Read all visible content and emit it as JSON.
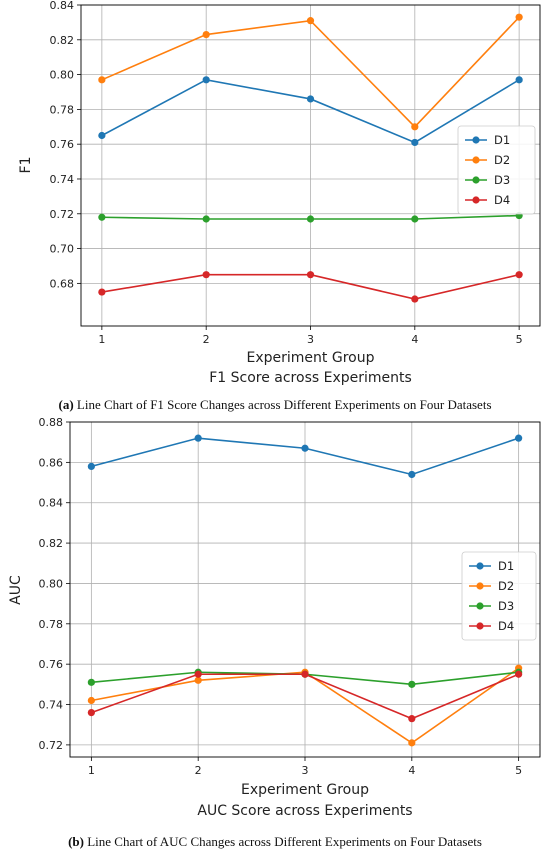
{
  "captions": [
    {
      "tag": "(a)",
      "text": " Line Chart of F1 Score Changes across Different Experiments on Four Datasets"
    },
    {
      "tag": "(b)",
      "text": " Line Chart of AUC Changes across Different Experiments on Four Datasets"
    }
  ],
  "chart_data": [
    {
      "type": "line",
      "xlabel": "Experiment Group",
      "subtitle": "F1 Score across Experiments",
      "ylabel": "F1",
      "x": [
        1,
        2,
        3,
        4,
        5
      ],
      "xlim": [
        0.8,
        5.2
      ],
      "ylim": [
        0.6555,
        0.84
      ],
      "yticks": [
        0.68,
        0.7,
        0.72,
        0.74,
        0.76,
        0.78,
        0.8,
        0.82,
        0.84
      ],
      "grid": true,
      "legend": "center-right",
      "series": [
        {
          "name": "D1",
          "color": "#1f77b4",
          "values": [
            0.765,
            0.797,
            0.786,
            0.761,
            0.797
          ]
        },
        {
          "name": "D2",
          "color": "#ff7f0e",
          "values": [
            0.797,
            0.823,
            0.831,
            0.77,
            0.833
          ]
        },
        {
          "name": "D3",
          "color": "#2ca02c",
          "values": [
            0.718,
            0.717,
            0.717,
            0.717,
            0.719
          ]
        },
        {
          "name": "D4",
          "color": "#d62728",
          "values": [
            0.675,
            0.685,
            0.685,
            0.671,
            0.685
          ]
        }
      ]
    },
    {
      "type": "line",
      "xlabel": "Experiment Group",
      "subtitle": "AUC Score across Experiments",
      "ylabel": "AUC",
      "x": [
        1,
        2,
        3,
        4,
        5
      ],
      "xlim": [
        0.8,
        5.2
      ],
      "ylim": [
        0.714,
        0.88
      ],
      "yticks": [
        0.72,
        0.74,
        0.76,
        0.78,
        0.8,
        0.82,
        0.84,
        0.86,
        0.88
      ],
      "grid": true,
      "legend": "center-right",
      "series": [
        {
          "name": "D1",
          "color": "#1f77b4",
          "values": [
            0.858,
            0.872,
            0.867,
            0.854,
            0.872
          ]
        },
        {
          "name": "D2",
          "color": "#ff7f0e",
          "values": [
            0.742,
            0.752,
            0.756,
            0.721,
            0.758
          ]
        },
        {
          "name": "D3",
          "color": "#2ca02c",
          "values": [
            0.751,
            0.756,
            0.755,
            0.75,
            0.756
          ]
        },
        {
          "name": "D4",
          "color": "#d62728",
          "values": [
            0.736,
            0.755,
            0.755,
            0.733,
            0.755
          ]
        }
      ]
    }
  ]
}
